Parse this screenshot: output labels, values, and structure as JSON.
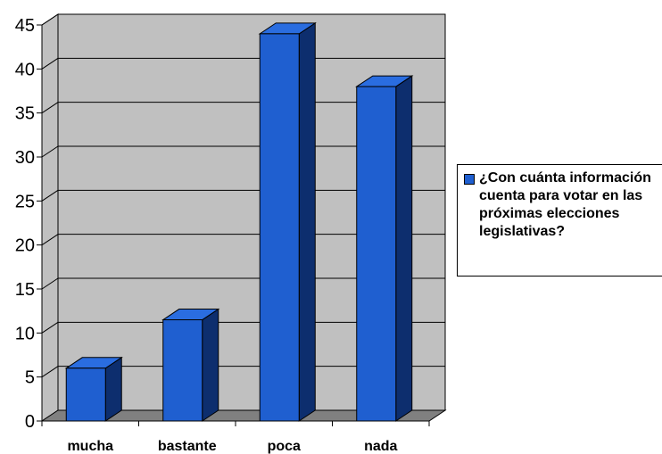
{
  "chart_data": {
    "type": "bar",
    "categories": [
      "mucha",
      "bastante",
      "poca",
      "nada"
    ],
    "values": [
      6,
      11.5,
      44,
      38
    ],
    "series": [
      {
        "name": "¿Con cuánta información cuenta para votar en las próximas elecciones legislativas?",
        "values": [
          6,
          11.5,
          44,
          38
        ]
      }
    ],
    "yticks": [
      "0",
      "5",
      "10",
      "15",
      "20",
      "25",
      "30",
      "35",
      "40",
      "45"
    ],
    "ylim": [
      0,
      45
    ],
    "grid": true,
    "legend_position": "right",
    "colors": {
      "bar_front": "#1f5fd0",
      "bar_side": "#0d2e6e",
      "bar_top": "#2a6de0",
      "wall": "#c0c0c0",
      "floor": "#808080"
    }
  }
}
